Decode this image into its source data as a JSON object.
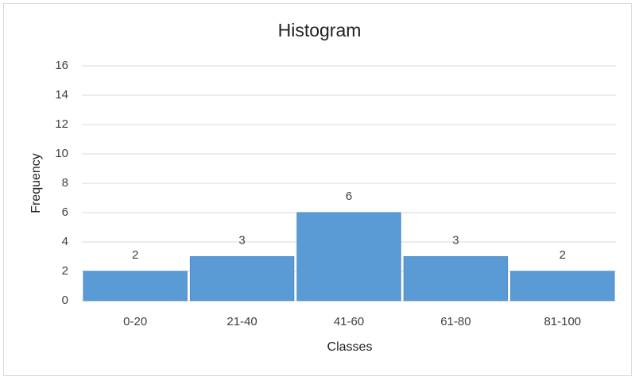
{
  "chart_data": {
    "type": "bar",
    "title": "Histogram",
    "x_label": "Classes",
    "y_label": "Frequency",
    "categories": [
      "0-20",
      "21-40",
      "41-60",
      "61-80",
      "81-100"
    ],
    "values": [
      2,
      3,
      6,
      3,
      2
    ],
    "color": "#5b9bd5",
    "ylim": [
      0,
      16
    ],
    "yticks": [
      0,
      2,
      4,
      6,
      8,
      10,
      12,
      14,
      16
    ],
    "grid": true
  }
}
